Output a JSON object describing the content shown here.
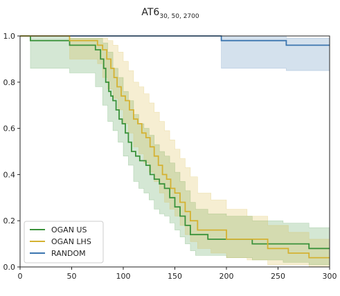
{
  "chart_data": {
    "type": "line",
    "title": {
      "main": "AT6",
      "subscript": "30, 50, 2700"
    },
    "xlabel": "",
    "ylabel": "",
    "xlim": [
      0,
      300
    ],
    "ylim": [
      0,
      1.0
    ],
    "xticks": [
      "0",
      "50",
      "100",
      "150",
      "200",
      "250",
      "300"
    ],
    "yticks": [
      "0.0",
      "0.2",
      "0.4",
      "0.6",
      "0.8",
      "1.0"
    ],
    "grid": false,
    "legend_position": "lower-left",
    "series": [
      {
        "name": "RANDOM",
        "color": "#3b75af",
        "step": [
          [
            0,
            1.0
          ],
          [
            195,
            1.0
          ],
          [
            195,
            0.98
          ],
          [
            258,
            0.98
          ],
          [
            258,
            0.96
          ],
          [
            300,
            0.96
          ]
        ],
        "band": [
          [
            0,
            1.0,
            1.0
          ],
          [
            195,
            1.0,
            0.86
          ],
          [
            258,
            0.99,
            0.85
          ],
          [
            300,
            0.99,
            0.85
          ]
        ]
      },
      {
        "name": "OGAN US",
        "color": "#3a923a",
        "step": [
          [
            0,
            1.0
          ],
          [
            10,
            1.0
          ],
          [
            10,
            0.98
          ],
          [
            48,
            0.98
          ],
          [
            48,
            0.96
          ],
          [
            73,
            0.96
          ],
          [
            73,
            0.94
          ],
          [
            78,
            0.94
          ],
          [
            78,
            0.9
          ],
          [
            81,
            0.9
          ],
          [
            81,
            0.86
          ],
          [
            83,
            0.86
          ],
          [
            83,
            0.8
          ],
          [
            86,
            0.8
          ],
          [
            86,
            0.76
          ],
          [
            88,
            0.76
          ],
          [
            88,
            0.74
          ],
          [
            90,
            0.74
          ],
          [
            90,
            0.72
          ],
          [
            93,
            0.72
          ],
          [
            93,
            0.68
          ],
          [
            96,
            0.68
          ],
          [
            96,
            0.64
          ],
          [
            99,
            0.64
          ],
          [
            99,
            0.62
          ],
          [
            102,
            0.62
          ],
          [
            102,
            0.58
          ],
          [
            105,
            0.58
          ],
          [
            105,
            0.54
          ],
          [
            108,
            0.54
          ],
          [
            108,
            0.5
          ],
          [
            112,
            0.5
          ],
          [
            112,
            0.48
          ],
          [
            116,
            0.48
          ],
          [
            116,
            0.46
          ],
          [
            122,
            0.46
          ],
          [
            122,
            0.44
          ],
          [
            126,
            0.44
          ],
          [
            126,
            0.4
          ],
          [
            130,
            0.4
          ],
          [
            130,
            0.38
          ],
          [
            135,
            0.38
          ],
          [
            135,
            0.36
          ],
          [
            140,
            0.36
          ],
          [
            140,
            0.34
          ],
          [
            145,
            0.34
          ],
          [
            145,
            0.3
          ],
          [
            150,
            0.3
          ],
          [
            150,
            0.26
          ],
          [
            155,
            0.26
          ],
          [
            155,
            0.22
          ],
          [
            160,
            0.22
          ],
          [
            160,
            0.18
          ],
          [
            165,
            0.18
          ],
          [
            165,
            0.14
          ],
          [
            182,
            0.14
          ],
          [
            182,
            0.12
          ],
          [
            225,
            0.12
          ],
          [
            225,
            0.1
          ],
          [
            280,
            0.1
          ],
          [
            280,
            0.08
          ],
          [
            300,
            0.08
          ]
        ],
        "band": [
          [
            0,
            1.0,
            1.0
          ],
          [
            10,
            1.0,
            0.86
          ],
          [
            48,
            0.99,
            0.84
          ],
          [
            73,
            0.99,
            0.78
          ],
          [
            80,
            0.97,
            0.7
          ],
          [
            85,
            0.93,
            0.63
          ],
          [
            90,
            0.86,
            0.59
          ],
          [
            95,
            0.82,
            0.54
          ],
          [
            100,
            0.76,
            0.48
          ],
          [
            105,
            0.72,
            0.44
          ],
          [
            110,
            0.66,
            0.37
          ],
          [
            115,
            0.62,
            0.34
          ],
          [
            120,
            0.6,
            0.32
          ],
          [
            125,
            0.57,
            0.29
          ],
          [
            130,
            0.53,
            0.25
          ],
          [
            135,
            0.5,
            0.23
          ],
          [
            140,
            0.48,
            0.22
          ],
          [
            145,
            0.45,
            0.19
          ],
          [
            150,
            0.41,
            0.16
          ],
          [
            155,
            0.37,
            0.13
          ],
          [
            160,
            0.33,
            0.1
          ],
          [
            165,
            0.28,
            0.07
          ],
          [
            170,
            0.25,
            0.05
          ],
          [
            182,
            0.23,
            0.05
          ],
          [
            200,
            0.22,
            0.04
          ],
          [
            225,
            0.2,
            0.03
          ],
          [
            255,
            0.19,
            0.02
          ],
          [
            280,
            0.17,
            0.01
          ],
          [
            300,
            0.17,
            0.01
          ]
        ]
      },
      {
        "name": "OGAN LHS",
        "color": "#d4b232",
        "step": [
          [
            0,
            1.0
          ],
          [
            48,
            1.0
          ],
          [
            48,
            0.98
          ],
          [
            75,
            0.98
          ],
          [
            75,
            0.96
          ],
          [
            80,
            0.96
          ],
          [
            80,
            0.94
          ],
          [
            84,
            0.94
          ],
          [
            84,
            0.9
          ],
          [
            88,
            0.9
          ],
          [
            88,
            0.86
          ],
          [
            91,
            0.86
          ],
          [
            91,
            0.82
          ],
          [
            94,
            0.82
          ],
          [
            94,
            0.78
          ],
          [
            98,
            0.78
          ],
          [
            98,
            0.74
          ],
          [
            102,
            0.74
          ],
          [
            102,
            0.72
          ],
          [
            106,
            0.72
          ],
          [
            106,
            0.68
          ],
          [
            110,
            0.68
          ],
          [
            110,
            0.64
          ],
          [
            114,
            0.64
          ],
          [
            114,
            0.62
          ],
          [
            118,
            0.62
          ],
          [
            118,
            0.58
          ],
          [
            122,
            0.58
          ],
          [
            122,
            0.56
          ],
          [
            126,
            0.56
          ],
          [
            126,
            0.52
          ],
          [
            130,
            0.52
          ],
          [
            130,
            0.48
          ],
          [
            134,
            0.48
          ],
          [
            134,
            0.44
          ],
          [
            138,
            0.44
          ],
          [
            138,
            0.4
          ],
          [
            142,
            0.4
          ],
          [
            142,
            0.38
          ],
          [
            146,
            0.38
          ],
          [
            146,
            0.34
          ],
          [
            150,
            0.34
          ],
          [
            150,
            0.32
          ],
          [
            155,
            0.32
          ],
          [
            155,
            0.28
          ],
          [
            160,
            0.28
          ],
          [
            160,
            0.24
          ],
          [
            165,
            0.24
          ],
          [
            165,
            0.2
          ],
          [
            172,
            0.2
          ],
          [
            172,
            0.16
          ],
          [
            200,
            0.16
          ],
          [
            200,
            0.12
          ],
          [
            240,
            0.12
          ],
          [
            240,
            0.08
          ],
          [
            260,
            0.08
          ],
          [
            260,
            0.06
          ],
          [
            280,
            0.06
          ],
          [
            280,
            0.04
          ],
          [
            300,
            0.04
          ]
        ],
        "band": [
          [
            0,
            1.0,
            1.0
          ],
          [
            48,
            0.99,
            0.9
          ],
          [
            75,
            0.99,
            0.88
          ],
          [
            80,
            0.99,
            0.82
          ],
          [
            85,
            0.98,
            0.77
          ],
          [
            90,
            0.96,
            0.73
          ],
          [
            95,
            0.93,
            0.68
          ],
          [
            100,
            0.89,
            0.62
          ],
          [
            105,
            0.85,
            0.58
          ],
          [
            110,
            0.8,
            0.52
          ],
          [
            115,
            0.78,
            0.49
          ],
          [
            120,
            0.75,
            0.45
          ],
          [
            125,
            0.71,
            0.41
          ],
          [
            130,
            0.67,
            0.37
          ],
          [
            135,
            0.63,
            0.32
          ],
          [
            140,
            0.59,
            0.28
          ],
          [
            145,
            0.55,
            0.25
          ],
          [
            150,
            0.51,
            0.22
          ],
          [
            155,
            0.47,
            0.18
          ],
          [
            160,
            0.43,
            0.14
          ],
          [
            165,
            0.39,
            0.11
          ],
          [
            172,
            0.32,
            0.08
          ],
          [
            185,
            0.29,
            0.06
          ],
          [
            200,
            0.25,
            0.04
          ],
          [
            220,
            0.22,
            0.03
          ],
          [
            240,
            0.18,
            0.01
          ],
          [
            260,
            0.15,
            0.01
          ],
          [
            280,
            0.12,
            0.0
          ],
          [
            300,
            0.12,
            0.0
          ]
        ]
      }
    ],
    "legend_order": [
      "OGAN US",
      "OGAN LHS",
      "RANDOM"
    ]
  }
}
